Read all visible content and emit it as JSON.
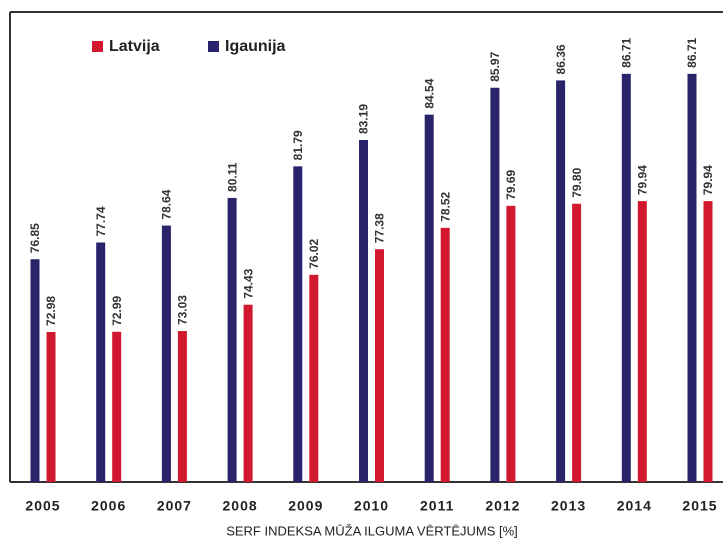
{
  "chart_data": {
    "type": "bar",
    "x_label": "SERF INDEKSA MŪŽA ILGUMA VĒRTĒJUMS [%]",
    "categories": [
      "2005",
      "2006",
      "2007",
      "2008",
      "2009",
      "2010",
      "2011",
      "2012",
      "2013",
      "2014",
      "2015"
    ],
    "series": [
      {
        "name": "Latvija",
        "color": "#d2182e",
        "values": [
          72.98,
          72.99,
          73.03,
          74.43,
          76.02,
          77.38,
          78.52,
          79.69,
          79.8,
          79.94,
          79.94
        ],
        "value_labels": [
          "72.98",
          "72.99",
          "73.03",
          "74.43",
          "76.02",
          "77.38",
          "78.52",
          "79.69",
          "79.80",
          "79.94",
          "79.94"
        ]
      },
      {
        "name": "Igaunija",
        "color": "#28236a",
        "values": [
          76.85,
          77.74,
          78.64,
          80.11,
          81.79,
          83.19,
          84.54,
          85.97,
          86.36,
          86.71,
          86.71
        ],
        "value_labels": [
          "76.85",
          "77.74",
          "78.64",
          "80.11",
          "81.79",
          "83.19",
          "84.54",
          "85.97",
          "86.36",
          "86.71",
          "86.71"
        ]
      }
    ],
    "ylim": [
      65,
      90
    ],
    "legend": "top-left"
  }
}
